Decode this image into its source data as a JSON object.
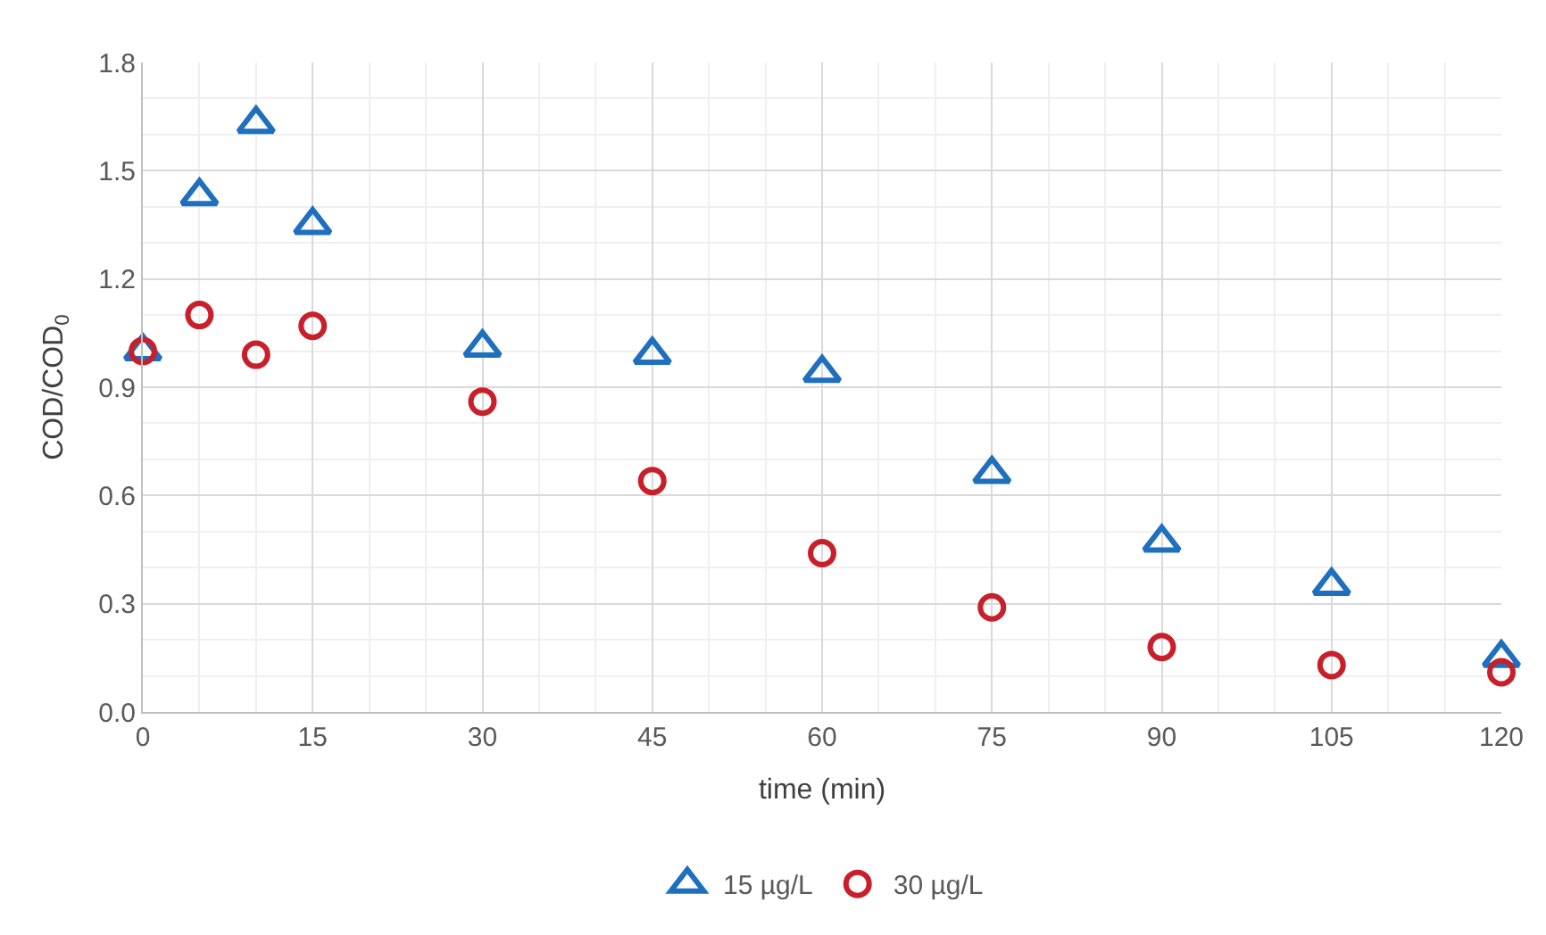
{
  "chart_data": {
    "type": "scatter",
    "xlabel": "time (min)",
    "ylabel": "COD/COD$_{0}$",
    "x": [
      0,
      5,
      10,
      15,
      30,
      45,
      60,
      75,
      90,
      105,
      120
    ],
    "series": [
      {
        "name": "15 µg/L",
        "color": "#1f6fbf",
        "marker": "triangle",
        "values": [
          1.0,
          1.43,
          1.63,
          1.35,
          1.01,
          0.99,
          0.94,
          0.66,
          0.47,
          0.35,
          0.15
        ]
      },
      {
        "name": "30 µg/L",
        "color": "#c8202a",
        "marker": "circle",
        "values": [
          1.0,
          1.1,
          0.99,
          1.07,
          0.86,
          0.64,
          0.44,
          0.29,
          0.18,
          0.13,
          0.11
        ]
      }
    ],
    "xlim": [
      0,
      120
    ],
    "xticks": [
      0,
      15,
      30,
      45,
      60,
      75,
      90,
      105,
      120
    ],
    "ylim": [
      0,
      1.8
    ],
    "yticks": [
      {
        "value": 0,
        "label": "0.0"
      },
      0.3,
      0.6,
      0.9,
      1.2,
      1.5,
      1.8
    ],
    "grid": true,
    "legend": "bottom"
  }
}
